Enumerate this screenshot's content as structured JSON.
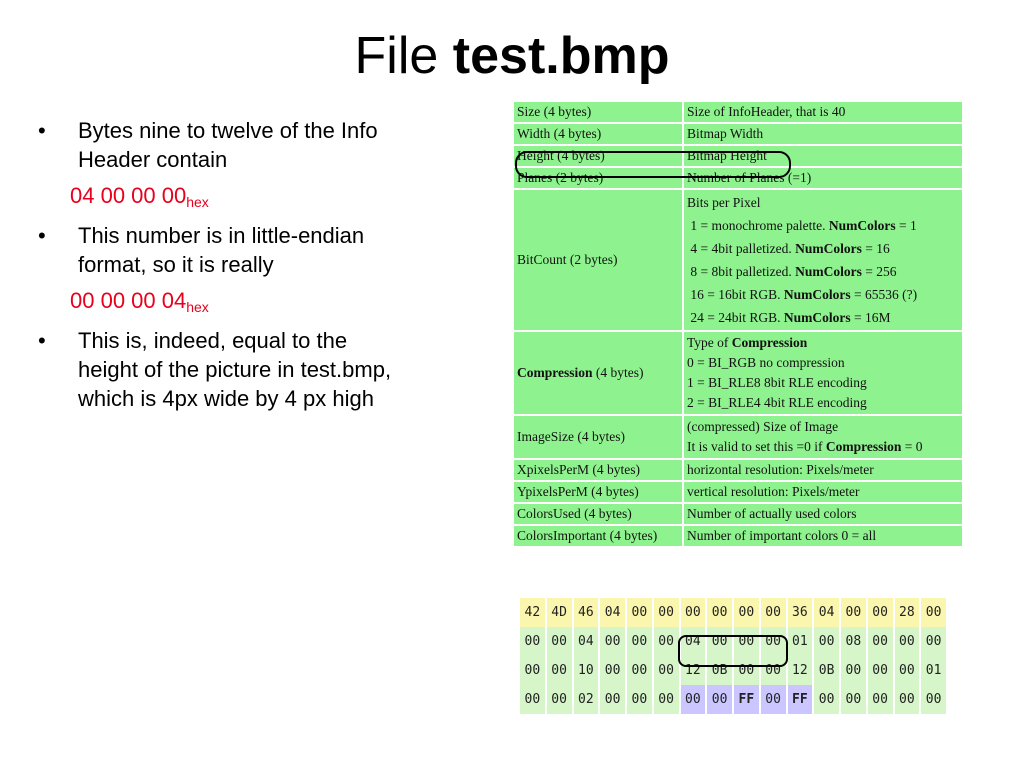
{
  "title": {
    "prefix": "File",
    "bold": "test.bmp"
  },
  "bullets": [
    {
      "text": "Bytes  nine to twelve  of the Info Header contain"
    },
    {
      "text": "This number is in little-endian format, so it is really"
    },
    {
      "text": "This is, indeed, equal to the height of the picture in test.bmp, which is 4px wide by 4 px high"
    }
  ],
  "hex_values": [
    {
      "value": "04 00 00 00",
      "sub": "hex"
    },
    {
      "value": "00 00 00 04",
      "sub": "hex"
    }
  ],
  "info_table": [
    {
      "field": "Size (4 bytes)",
      "desc": [
        "Size of InfoHeader, that is 40"
      ]
    },
    {
      "field": "Width (4 bytes)",
      "desc": [
        "Bitmap Width"
      ]
    },
    {
      "field": "Height (4 bytes)",
      "desc": [
        "Bitmap Height"
      ]
    },
    {
      "field": "Planes (2 bytes)",
      "desc": [
        "Number of Planes (=1)"
      ]
    },
    {
      "field": "BitCount (2 bytes)",
      "desc": [
        "Bits per Pixel",
        " 1 = monochrome palette. NumColors = 1",
        " 4 = 4bit palletized. NumColors = 16",
        " 8 = 8bit palletized. NumColors = 256",
        " 16 = 16bit RGB. NumColors = 65536 (?)",
        " 24 = 24bit RGB. NumColors = 16M"
      ]
    },
    {
      "field": "Compression",
      "field_suffix": " (4 bytes)",
      "desc": [
        "Type of Compression",
        "0 = BI_RGB no compression",
        "1 = BI_RLE8 8bit RLE encoding",
        "2 = BI_RLE4 4bit RLE encoding"
      ]
    },
    {
      "field": "ImageSize (4 bytes)",
      "desc": [
        "(compressed) Size of Image",
        "It is valid to set this =0 if Compression = 0"
      ]
    },
    {
      "field": "XpixelsPerM (4 bytes)",
      "desc": [
        "horizontal resolution: Pixels/meter"
      ]
    },
    {
      "field": "YpixelsPerM (4 bytes)",
      "desc": [
        "vertical resolution: Pixels/meter"
      ]
    },
    {
      "field": "ColorsUsed (4 bytes)",
      "desc": [
        "Number of actually used colors"
      ]
    },
    {
      "field": "ColorsImportant (4 bytes)",
      "desc": [
        "Number of important colors 0 = all"
      ]
    }
  ],
  "hex_dump": [
    [
      "42",
      "4D",
      "46",
      "04",
      "00",
      "00",
      "00",
      "00",
      "00",
      "00",
      "36",
      "04",
      "00",
      "00",
      "28",
      "00"
    ],
    [
      "00",
      "00",
      "04",
      "00",
      "00",
      "00",
      "04",
      "00",
      "00",
      "00",
      "01",
      "00",
      "08",
      "00",
      "00",
      "00"
    ],
    [
      "00",
      "00",
      "10",
      "00",
      "00",
      "00",
      "12",
      "0B",
      "00",
      "00",
      "12",
      "0B",
      "00",
      "00",
      "00",
      "01"
    ],
    [
      "00",
      "00",
      "02",
      "00",
      "00",
      "00",
      "00",
      "00",
      "FF",
      "00",
      "FF",
      "00",
      "00",
      "00",
      "00",
      "00"
    ]
  ],
  "colors": {
    "table_green": "#8ef38e",
    "hex_red": "#e8001c",
    "dump_yellow": "#fbf6ad",
    "dump_green": "#d6f5c9",
    "dump_purple": "#cbc6ff"
  }
}
